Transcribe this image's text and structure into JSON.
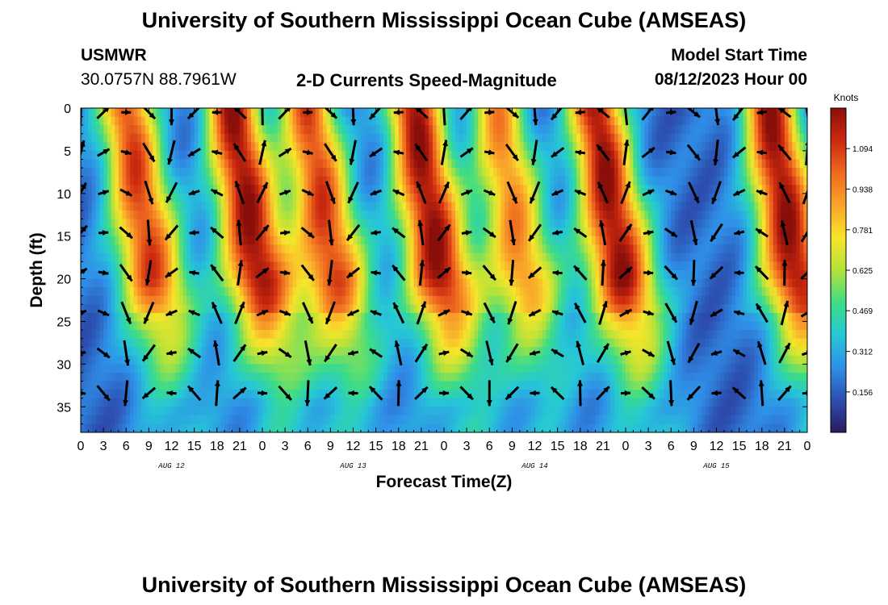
{
  "header": {
    "title": "University of Southern Mississippi Ocean Cube (AMSEAS)",
    "station": "USMWR",
    "coords": "30.0757N  88.7961W",
    "subtitle": "2-D Currents Speed-Magnitude",
    "model_start_label": "Model Start Time",
    "model_start_value": "08/12/2023 Hour 00"
  },
  "footer": {
    "title": "University of Southern Mississippi Ocean Cube (AMSEAS)"
  },
  "chart_data": {
    "type": "heatmap",
    "title": "2-D Currents Speed-Magnitude",
    "xlabel": "Forecast Time(Z)",
    "ylabel": "Depth (ft)",
    "xlim": [
      0,
      96
    ],
    "ylim": [
      0,
      38
    ],
    "y_reversed": true,
    "x_ticks": [
      0,
      3,
      6,
      9,
      12,
      15,
      18,
      21,
      24,
      27,
      30,
      33,
      36,
      39,
      42,
      45,
      48,
      51,
      54,
      57,
      60,
      63,
      66,
      69,
      72,
      75,
      78,
      81,
      84,
      87,
      90,
      93,
      96
    ],
    "x_tick_labels": [
      "0",
      "3",
      "6",
      "9",
      "12",
      "15",
      "18",
      "21",
      "0",
      "3",
      "6",
      "9",
      "12",
      "15",
      "18",
      "21",
      "0",
      "3",
      "6",
      "9",
      "12",
      "15",
      "18",
      "21",
      "0",
      "3",
      "6",
      "9",
      "12",
      "15",
      "18",
      "21",
      "0"
    ],
    "y_ticks": [
      0,
      5,
      10,
      15,
      20,
      25,
      30,
      35
    ],
    "y_tick_labels": [
      "0",
      "5",
      "10",
      "15",
      "20",
      "25",
      "30",
      "35"
    ],
    "date_labels": [
      {
        "hour": 12,
        "label": "AUG 12"
      },
      {
        "hour": 36,
        "label": "AUG 13"
      },
      {
        "hour": 60,
        "label": "AUG 14"
      },
      {
        "hour": 84,
        "label": "AUG 15"
      }
    ],
    "speed_peaks_knots": [
      {
        "hour": 6,
        "peak": 1.0
      },
      {
        "hour": 20,
        "peak": 1.15
      },
      {
        "hour": 30,
        "peak": 1.0
      },
      {
        "hour": 44,
        "peak": 1.15
      },
      {
        "hour": 55,
        "peak": 0.85
      },
      {
        "hour": 68,
        "peak": 1.15
      },
      {
        "hour": 91,
        "peak": 1.15
      }
    ],
    "colorbar": {
      "label": "Knots",
      "min": 0.0,
      "max": 1.25,
      "ticks": [
        0.156,
        0.312,
        0.469,
        0.625,
        0.781,
        0.938,
        1.094
      ],
      "tick_labels": [
        "0.156",
        "0.312",
        "0.469",
        "0.625",
        "0.781",
        "0.938",
        "1.094"
      ],
      "colors": [
        "#2a1a5e",
        "#2c4fb0",
        "#2f8fe8",
        "#26c7d6",
        "#3ddc86",
        "#b5e23a",
        "#f7e52a",
        "#f9a42a",
        "#ef6a1f",
        "#cc2a10",
        "#8a0f0a"
      ]
    },
    "grid": false,
    "legend": "colorbar-right"
  }
}
